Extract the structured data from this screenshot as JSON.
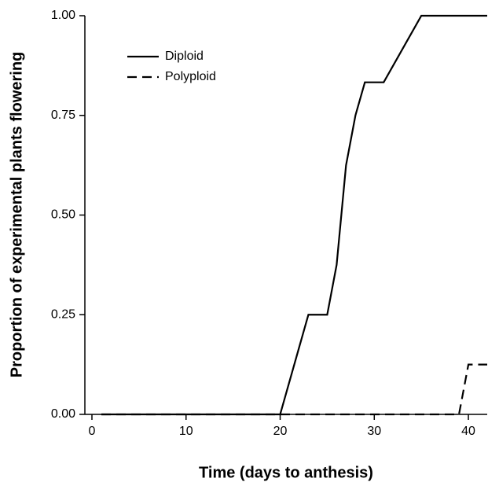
{
  "chart_data": {
    "type": "line",
    "x_label": "Time (days to anthesis)",
    "y_label": "Proportion of experimental plants flowering",
    "xlim": [
      -0.75,
      42
    ],
    "xticks": [
      0,
      10,
      20,
      30,
      40
    ],
    "ylim": [
      0,
      1
    ],
    "yticks": [
      {
        "value": 0,
        "label": "0.00"
      },
      {
        "value": 0.25,
        "label": "0.25"
      },
      {
        "value": 0.5,
        "label": "0.50"
      },
      {
        "value": 0.75,
        "label": "0.75"
      },
      {
        "value": 1,
        "label": "1.00"
      }
    ],
    "legend": "upper left",
    "series": [
      {
        "name": "Diploid",
        "color": "#000000",
        "dash": "solid",
        "x": [
          1,
          20,
          23,
          25,
          26,
          27,
          28,
          29,
          31,
          35,
          42
        ],
        "values": [
          0,
          0,
          0.25,
          0.25,
          0.375,
          0.625,
          0.75,
          0.833,
          0.833,
          1,
          1
        ]
      },
      {
        "name": "Polyploid",
        "color": "#000000",
        "dash": "dashed",
        "x": [
          1,
          39,
          40,
          42
        ],
        "values": [
          0,
          0,
          0.125,
          0.125
        ]
      }
    ]
  }
}
